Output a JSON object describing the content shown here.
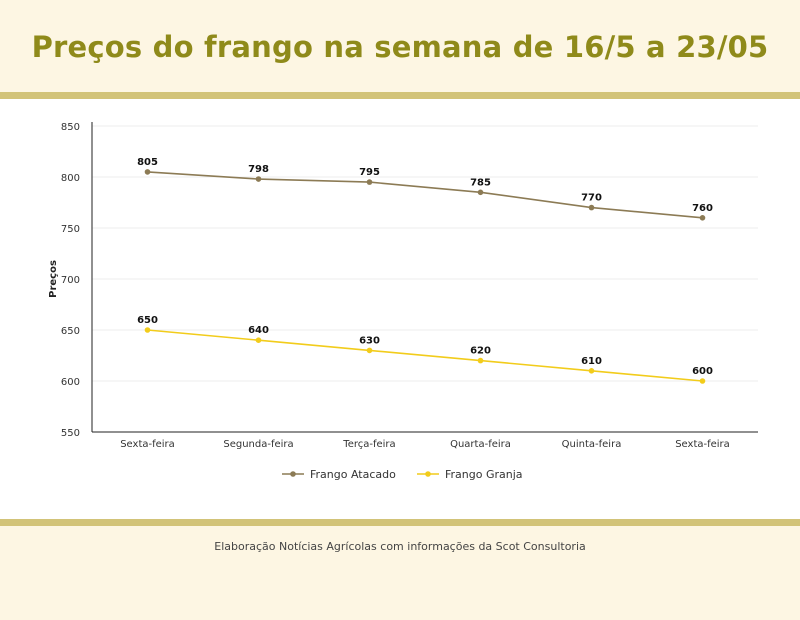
{
  "header": {
    "title": "Preços do frango na semana de 16/5 a 23/05"
  },
  "footer": {
    "credit": "Elaboração Notícias Agrícolas com informações da Scot Consultoria"
  },
  "colors": {
    "title": "#8f8a1a",
    "band": "#d2c378",
    "background": "#fdf6e3",
    "atacado": "#8c7b55",
    "granja": "#f2cc1b"
  },
  "chart_data": {
    "type": "line",
    "categories": [
      "Sexta-feira",
      "Segunda-feira",
      "Terça-feira",
      "Quarta-feira",
      "Quinta-feira",
      "Sexta-feira"
    ],
    "series": [
      {
        "name": "Frango Atacado",
        "values": [
          805,
          798,
          795,
          785,
          770,
          760
        ],
        "color": "#8c7b55"
      },
      {
        "name": "Frango Granja",
        "values": [
          650,
          640,
          630,
          620,
          610,
          600
        ],
        "color": "#f2cc1b"
      }
    ],
    "ylabel": "Preços",
    "xlabel": "",
    "ylim": [
      550,
      850
    ],
    "yticks": [
      550,
      600,
      650,
      700,
      750,
      800,
      850
    ],
    "legend": "bottom",
    "grid": true
  }
}
